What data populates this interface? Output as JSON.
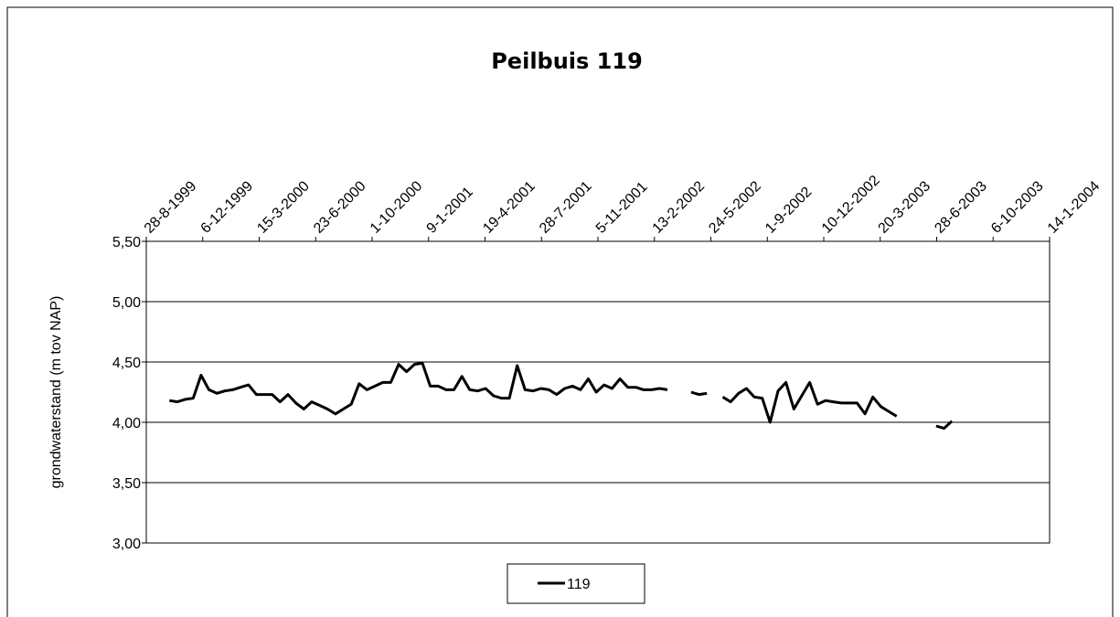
{
  "chart_data": {
    "type": "line",
    "title": "Peilbuis 119",
    "ylabel": "grondwaterstand (m tov NAP)",
    "x": [
      "1999-10-08",
      "1999-10-22",
      "1999-11-05",
      "1999-11-19",
      "1999-12-03",
      "1999-12-17",
      "1999-12-31",
      "2000-01-14",
      "2000-01-28",
      "2000-02-11",
      "2000-02-25",
      "2000-03-10",
      "2000-03-24",
      "2000-04-07",
      "2000-04-21",
      "2000-05-05",
      "2000-05-19",
      "2000-06-02",
      "2000-06-16",
      "2000-06-30",
      "2000-07-14",
      "2000-07-28",
      "2000-08-11",
      "2000-08-25",
      "2000-09-08",
      "2000-09-22",
      "2000-10-06",
      "2000-10-20",
      "2000-11-03",
      "2000-11-17",
      "2000-12-01",
      "2000-12-15",
      "2000-12-29",
      "2001-01-12",
      "2001-01-26",
      "2001-02-09",
      "2001-02-23",
      "2001-03-09",
      "2001-03-23",
      "2001-04-06",
      "2001-04-20",
      "2001-05-04",
      "2001-05-18",
      "2001-06-01",
      "2001-06-15",
      "2001-06-29",
      "2001-07-13",
      "2001-07-27",
      "2001-08-10",
      "2001-08-24",
      "2001-09-07",
      "2001-09-21",
      "2001-10-05",
      "2001-10-19",
      "2001-11-02",
      "2001-11-16",
      "2001-11-30",
      "2001-12-14",
      "2001-12-28",
      "2002-01-11",
      "2002-01-25",
      "2002-02-08",
      "2002-02-22",
      "2002-03-08",
      "2002-03-22",
      "2002-04-05",
      "2002-04-19",
      "2002-05-03",
      "2002-05-17",
      "2002-05-31",
      "2002-06-14",
      "2002-06-28",
      "2002-07-12",
      "2002-07-26",
      "2002-08-09",
      "2002-08-23",
      "2002-09-06",
      "2002-09-20",
      "2002-10-04",
      "2002-10-18",
      "2002-11-01",
      "2002-11-15",
      "2002-11-29",
      "2002-12-13",
      "2002-12-27",
      "2003-01-10",
      "2003-01-24",
      "2003-02-07",
      "2003-02-21",
      "2003-03-07",
      "2003-03-21",
      "2003-04-04",
      "2003-04-18",
      "2003-05-02",
      "2003-05-16",
      "2003-05-30",
      "2003-06-13",
      "2003-06-27",
      "2003-07-11",
      "2003-07-25"
    ],
    "series": [
      {
        "name": "119",
        "color": "#000000",
        "values": [
          4.18,
          4.17,
          4.19,
          4.2,
          4.39,
          4.27,
          4.24,
          4.26,
          4.27,
          4.29,
          4.31,
          4.23,
          4.23,
          4.23,
          4.17,
          4.23,
          4.16,
          4.11,
          4.17,
          4.14,
          4.11,
          4.07,
          4.11,
          4.15,
          4.32,
          4.27,
          4.3,
          4.33,
          4.33,
          4.48,
          4.42,
          4.48,
          4.49,
          4.3,
          4.3,
          4.27,
          4.27,
          4.38,
          4.27,
          4.26,
          4.28,
          4.22,
          4.2,
          4.2,
          4.47,
          4.27,
          4.26,
          4.28,
          4.27,
          4.23,
          4.28,
          4.3,
          4.27,
          4.36,
          4.25,
          4.31,
          4.28,
          4.36,
          4.29,
          4.29,
          4.27,
          4.27,
          4.28,
          4.27,
          null,
          null,
          4.25,
          4.23,
          4.24,
          null,
          4.21,
          4.17,
          4.24,
          4.28,
          4.21,
          4.2,
          4.0,
          4.26,
          4.33,
          4.11,
          4.22,
          4.33,
          4.15,
          4.18,
          4.17,
          4.16,
          4.16,
          4.16,
          4.07,
          4.21,
          4.13,
          4.09,
          4.05,
          null,
          null,
          null,
          null,
          3.97,
          3.95,
          4.01
        ]
      }
    ],
    "xlim": [
      "1999-08-28",
      "2004-01-14"
    ],
    "xticks": [
      {
        "value": "1999-08-28",
        "label": "28-8-1999"
      },
      {
        "value": "1999-12-06",
        "label": "6-12-1999"
      },
      {
        "value": "2000-03-15",
        "label": "15-3-2000"
      },
      {
        "value": "2000-06-23",
        "label": "23-6-2000"
      },
      {
        "value": "2000-10-01",
        "label": "1-10-2000"
      },
      {
        "value": "2001-01-09",
        "label": "9-1-2001"
      },
      {
        "value": "2001-04-19",
        "label": "19-4-2001"
      },
      {
        "value": "2001-07-28",
        "label": "28-7-2001"
      },
      {
        "value": "2001-11-05",
        "label": "5-11-2001"
      },
      {
        "value": "2002-02-13",
        "label": "13-2-2002"
      },
      {
        "value": "2002-05-24",
        "label": "24-5-2002"
      },
      {
        "value": "2002-09-01",
        "label": "1-9-2002"
      },
      {
        "value": "2002-12-10",
        "label": "10-12-2002"
      },
      {
        "value": "2003-03-20",
        "label": "20-3-2003"
      },
      {
        "value": "2003-06-28",
        "label": "28-6-2003"
      },
      {
        "value": "2003-10-06",
        "label": "6-10-2003"
      },
      {
        "value": "2004-01-14",
        "label": "14-1-2004"
      }
    ],
    "ylim": [
      3.0,
      5.5
    ],
    "yticks": [
      {
        "value": 3.0,
        "label": "3,00"
      },
      {
        "value": 3.5,
        "label": "3,50"
      },
      {
        "value": 4.0,
        "label": "4,00"
      },
      {
        "value": 4.5,
        "label": "4,50"
      },
      {
        "value": 5.0,
        "label": "5,00"
      },
      {
        "value": 5.5,
        "label": "5,50"
      }
    ],
    "grid": true,
    "legend": "bottom"
  }
}
